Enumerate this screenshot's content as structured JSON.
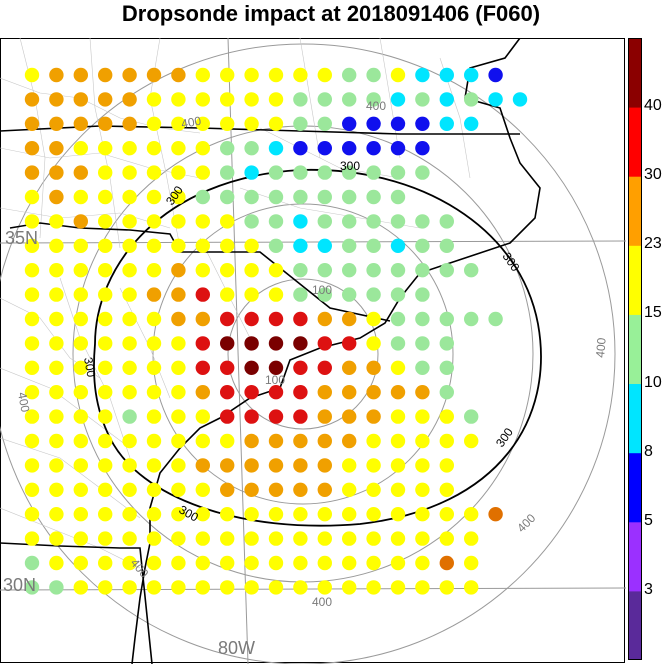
{
  "title": "Dropsonde impact at 2018091406 (F060)",
  "map_labels": {
    "lat_35": "35N",
    "lat_30": "30N",
    "lon_80": "80W"
  },
  "contour_labels": {
    "inner": "100",
    "middle": "300",
    "outer": "400"
  },
  "colorbar": {
    "ticks": [
      "3",
      "5",
      "8",
      "10",
      "15",
      "23",
      "30",
      "40"
    ],
    "colors": [
      "#5a2a9a",
      "#9b30ff",
      "#0000ff",
      "#00e5ff",
      "#98f098",
      "#ffff00",
      "#ff9f00",
      "#ff0000",
      "#8b0000"
    ]
  },
  "colors": {
    "yellow": "#ffff00",
    "orange": "#f0a000",
    "red": "#dd1111",
    "dark_red": "#7a0000",
    "light_green": "#9be79b",
    "cyan": "#00e5ff",
    "blue": "#1010ee",
    "dark_orange": "#e07000"
  }
}
